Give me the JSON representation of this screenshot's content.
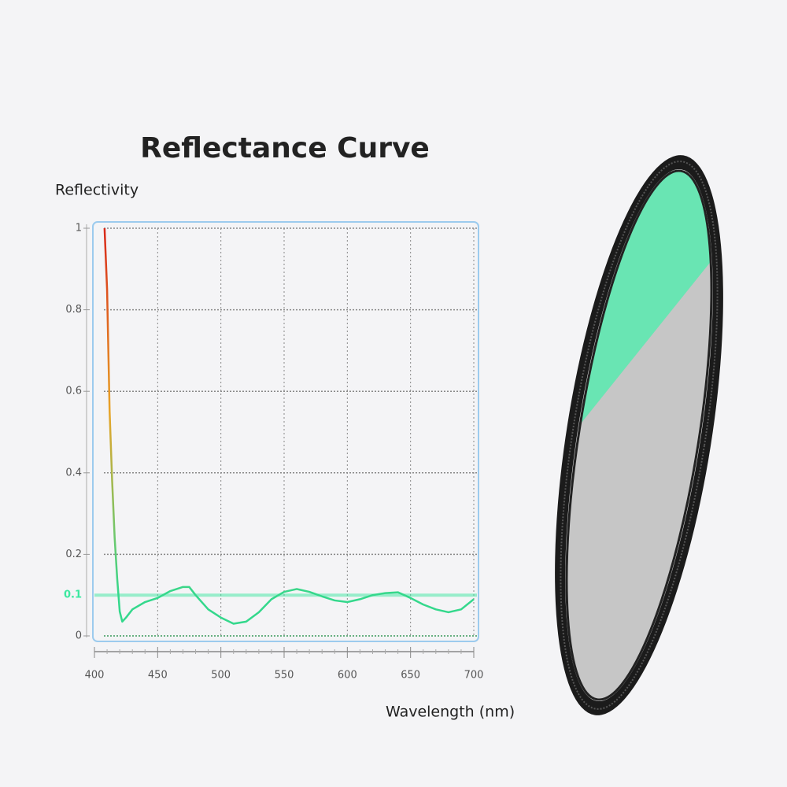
{
  "chart_data": {
    "type": "line",
    "title": "Reflectance Curve",
    "y_label": "Reflectivity",
    "x_label": "Wavelength (nm)",
    "x": [
      408,
      410,
      412,
      414,
      416,
      418,
      420,
      422,
      425,
      430,
      440,
      450,
      460,
      470,
      475,
      480,
      490,
      500,
      510,
      520,
      530,
      540,
      550,
      560,
      570,
      580,
      590,
      600,
      610,
      620,
      630,
      640,
      650,
      660,
      670,
      680,
      690,
      700
    ],
    "values": [
      1.0,
      0.85,
      0.55,
      0.38,
      0.24,
      0.14,
      0.06,
      0.035,
      0.045,
      0.065,
      0.083,
      0.093,
      0.11,
      0.12,
      0.12,
      0.1,
      0.065,
      0.045,
      0.03,
      0.035,
      0.058,
      0.09,
      0.108,
      0.115,
      0.108,
      0.097,
      0.087,
      0.083,
      0.09,
      0.1,
      0.105,
      0.107,
      0.093,
      0.077,
      0.065,
      0.058,
      0.065,
      0.09
    ],
    "gradient": [
      "#d8281a",
      "#e8a428",
      "#34d88c"
    ],
    "xlim": [
      400,
      700
    ],
    "xticks": [
      400,
      450,
      500,
      550,
      600,
      650,
      700
    ],
    "ylim": [
      0,
      1
    ],
    "yticks": [
      0,
      0.2,
      0.4,
      0.6,
      0.8,
      1
    ],
    "reference_line": {
      "value": 0.1,
      "color": "#3ce8a0"
    },
    "grid": true
  }
}
